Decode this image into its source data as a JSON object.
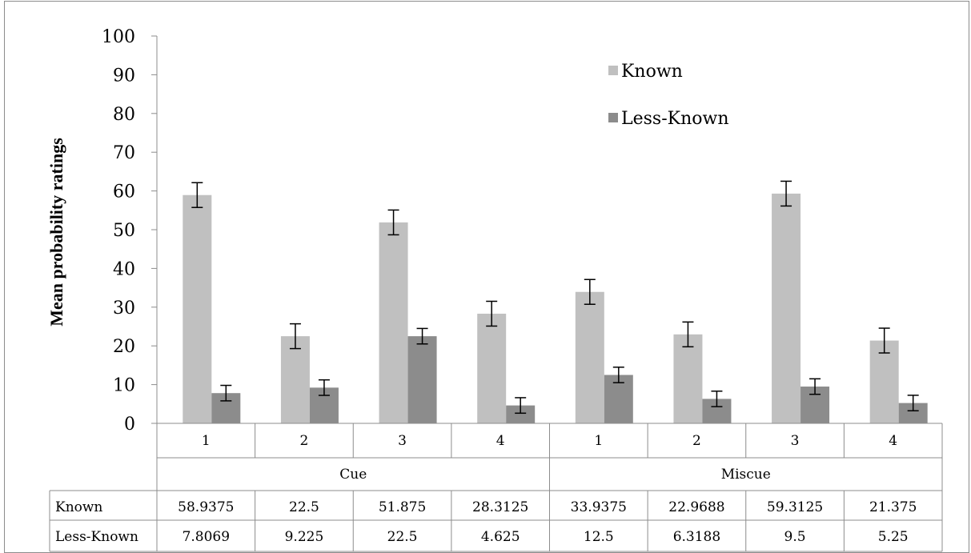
{
  "chart_data": {
    "type": "bar",
    "ylabel": "Mean probability ratings",
    "ylim": [
      0,
      100
    ],
    "yticks": [
      0,
      10,
      20,
      30,
      40,
      50,
      60,
      70,
      80,
      90,
      100
    ],
    "categories": [
      "1",
      "2",
      "3",
      "4",
      "1",
      "2",
      "3",
      "4"
    ],
    "groups": [
      {
        "label": "Cue",
        "span": 4
      },
      {
        "label": "Miscue",
        "span": 4
      }
    ],
    "series": [
      {
        "name": "Known",
        "color": "#c0c0c0",
        "values": [
          58.9375,
          22.5,
          51.875,
          28.3125,
          33.9375,
          22.9688,
          59.3125,
          21.375
        ],
        "error": [
          3.2,
          3.2,
          3.2,
          3.2,
          3.2,
          3.2,
          3.2,
          3.2
        ]
      },
      {
        "name": "Less-Known",
        "color": "#8c8c8c",
        "values": [
          7.8069,
          9.225,
          22.5,
          4.625,
          12.5,
          6.3188,
          9.5,
          5.25
        ],
        "error": [
          2.0,
          2.0,
          2.0,
          2.0,
          2.0,
          2.0,
          2.0,
          2.0
        ]
      }
    ],
    "table": {
      "rows": [
        {
          "label": "Known",
          "cells": [
            "58.9375",
            "22.5",
            "51.875",
            "28.3125",
            "33.9375",
            "22.9688",
            "59.3125",
            "21.375"
          ]
        },
        {
          "label": "Less-Known",
          "cells": [
            "7.8069",
            "9.225",
            "22.5",
            "4.625",
            "12.5",
            "6.3188",
            "9.5",
            "5.25"
          ]
        }
      ]
    },
    "legend_position": "top-right",
    "grid": false
  }
}
